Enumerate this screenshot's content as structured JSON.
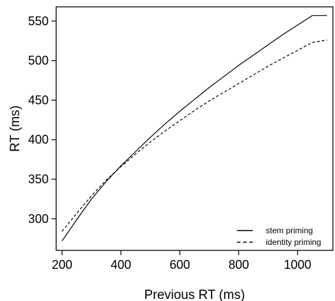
{
  "chart_data": {
    "type": "line",
    "title": "",
    "xlabel": "Previous RT (ms)",
    "ylabel": "RT (ms)",
    "xlim": [
      180,
      1120
    ],
    "ylim": [
      260,
      568
    ],
    "xticks": [
      200,
      400,
      600,
      800,
      1000
    ],
    "xtick_labels": [
      "200",
      "400",
      "600",
      "800",
      "1000"
    ],
    "yticks": [
      300,
      350,
      400,
      450,
      500,
      550
    ],
    "ytick_labels": [
      "300",
      "350",
      "400",
      "450",
      "500",
      "550"
    ],
    "grid": false,
    "legend_position": "bottom-right",
    "series": [
      {
        "name": "stem priming",
        "line_style": "solid",
        "color": "#000000",
        "x": [
          200,
          250,
          300,
          350,
          400,
          450,
          500,
          550,
          600,
          650,
          700,
          750,
          800,
          850,
          900,
          950,
          1000,
          1050,
          1100
        ],
        "y": [
          272,
          299,
          325,
          347,
          367,
          385,
          403,
          420,
          436,
          451,
          466,
          480,
          494,
          507,
          520,
          533,
          545,
          557,
          557
        ]
      },
      {
        "name": "identity priming",
        "line_style": "dashed",
        "color": "#000000",
        "x": [
          200,
          250,
          300,
          350,
          400,
          450,
          500,
          550,
          600,
          650,
          700,
          750,
          800,
          850,
          900,
          950,
          1000,
          1050,
          1100
        ],
        "y": [
          284,
          307,
          329,
          349,
          366,
          382,
          397,
          411,
          424,
          437,
          449,
          460,
          471,
          482,
          493,
          503,
          513,
          523,
          526
        ]
      }
    ]
  }
}
